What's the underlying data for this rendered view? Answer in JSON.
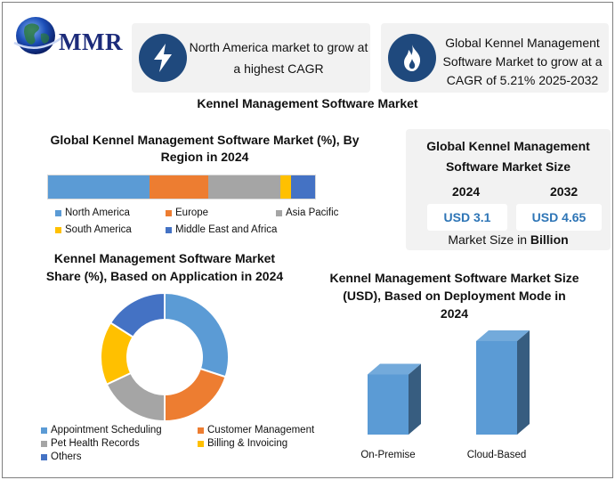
{
  "logo": {
    "text": "MMR"
  },
  "highlights": [
    {
      "icon": "lightning-icon",
      "text": "North America market to grow at a highest CAGR"
    },
    {
      "icon": "flame-icon",
      "text": "Global Kennel Management Software Market to grow at a CAGR of 5.21% 2025-2032"
    }
  ],
  "main_title": "Kennel Management Software Market",
  "market_size": {
    "title": "Global Kennel Management Software Market Size",
    "year_1": "2024",
    "value_1": "USD 3.1",
    "year_2": "2032",
    "value_2": "USD 4.65",
    "note_prefix": "Market Size in ",
    "note_unit": "Billion"
  },
  "colors": {
    "blue": "#5b9bd5",
    "orange": "#ed7d31",
    "gray": "#a5a5a5",
    "yellow": "#ffc000",
    "dark_blue": "#4472c4",
    "icon_bg": "#1f497d",
    "value_text": "#2e75b6"
  },
  "chart_data": [
    {
      "type": "bar",
      "orientation": "horizontal-stacked",
      "title": "Global Kennel Management Software Market (%), By Region in 2024",
      "categories": [
        "North America",
        "Europe",
        "Asia Pacific",
        "South America",
        "Middle East and Africa"
      ],
      "values": [
        38,
        22,
        27,
        4,
        9
      ],
      "colors": [
        "#5b9bd5",
        "#ed7d31",
        "#a5a5a5",
        "#ffc000",
        "#4472c4"
      ],
      "legend": "bottom"
    },
    {
      "type": "pie",
      "style": "donut",
      "title": "Kennel Management Software Market Share (%), Based on Application in 2024",
      "categories": [
        "Appointment Scheduling",
        "Customer Management",
        "Pet Health Records",
        "Billing & Invoicing",
        "Others"
      ],
      "values": [
        30,
        20,
        18,
        16,
        16
      ],
      "colors": [
        "#5b9bd5",
        "#ed7d31",
        "#a5a5a5",
        "#ffc000",
        "#4472c4"
      ],
      "legend": "bottom"
    },
    {
      "type": "bar",
      "style": "3d-column",
      "title": "Kennel Management Software Market Size (USD), Based on Deployment Mode in 2024",
      "categories": [
        "On-Premise",
        "Cloud-Based"
      ],
      "values": [
        45,
        70
      ],
      "ylim": [
        0,
        100
      ],
      "colors": [
        "#5b9bd5",
        "#5b9bd5"
      ],
      "legend": "none",
      "grid": false
    }
  ]
}
